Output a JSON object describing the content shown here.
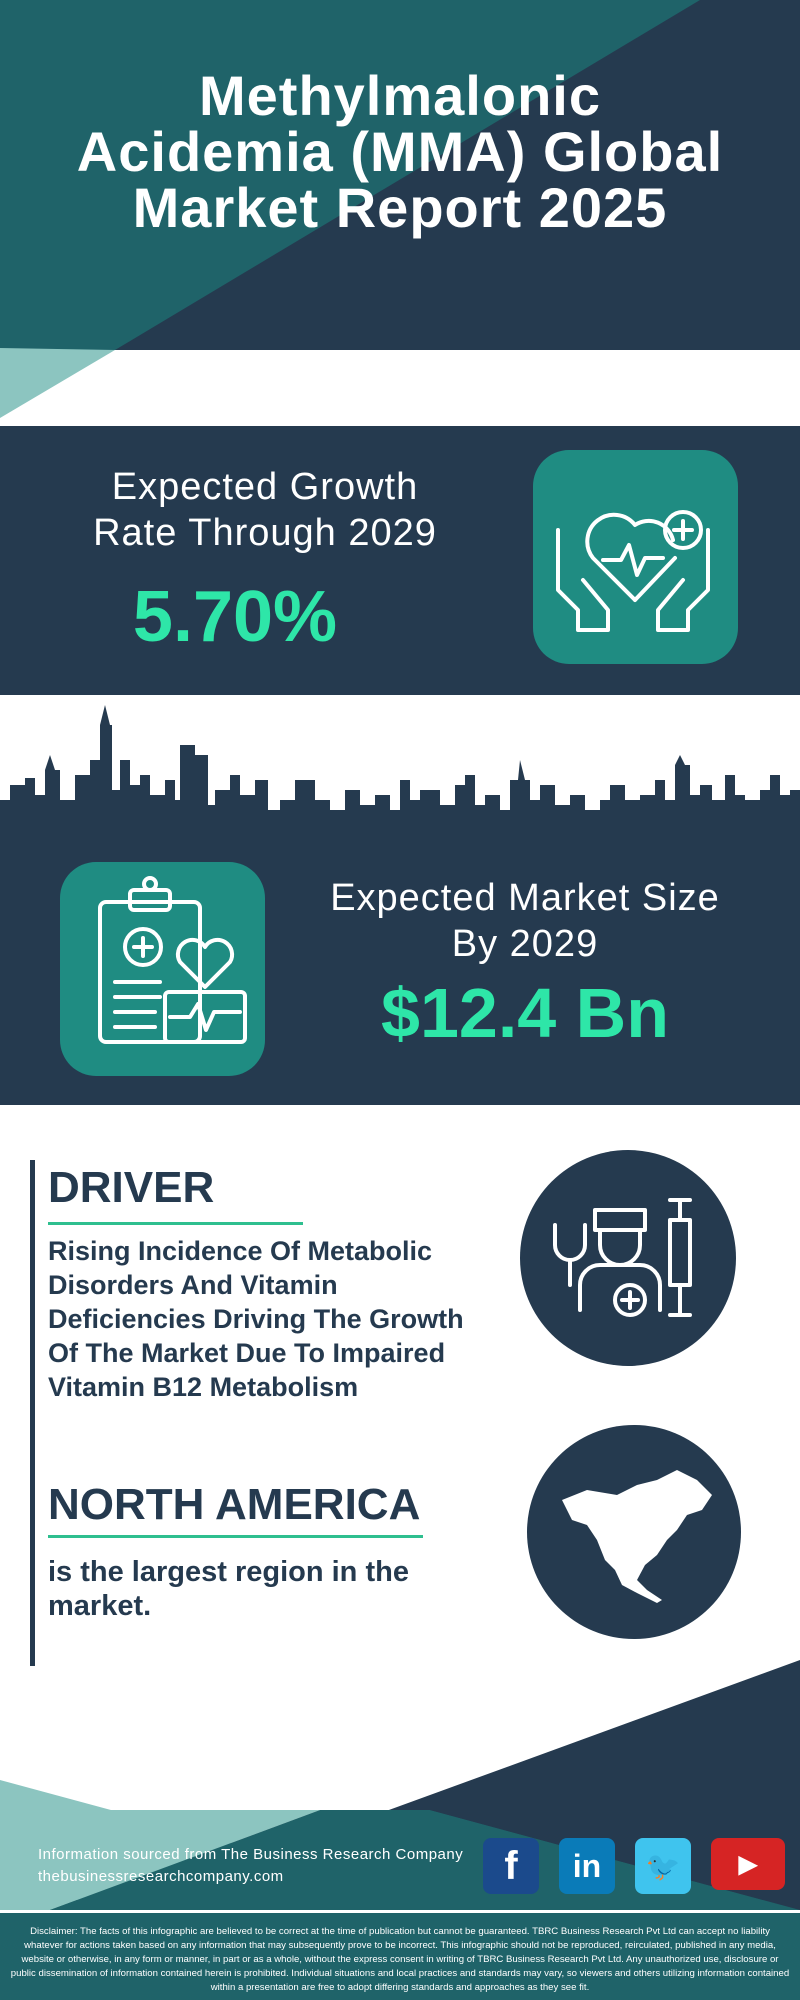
{
  "header": {
    "title_lines": [
      "Methylmalonic",
      "Acidemia (MMA) Global",
      "Market Report 2025"
    ]
  },
  "growth": {
    "label_lines": [
      "Expected Growth",
      "Rate Through 2029"
    ],
    "value": "5.70%",
    "icon": "heart-in-hands-icon"
  },
  "market": {
    "label_lines": [
      "Expected Market Size",
      "By 2029"
    ],
    "value": "$12.4 Bn",
    "icon": "medical-clipboard-heart-icon"
  },
  "driver": {
    "heading": "DRIVER",
    "text": "Rising Incidence Of Metabolic Disorders And Vitamin Deficiencies Driving The Growth Of The Market Due To Impaired Vitamin B12 Metabolism",
    "icon": "doctor-syringe-icon"
  },
  "region": {
    "heading": "NORTH AMERICA",
    "text": "is the largest region in the market.",
    "icon": "north-america-map-icon"
  },
  "footer": {
    "source": "Information sourced from The Business Research Company",
    "website": "thebusinessresearchcompany.com",
    "social": [
      {
        "name": "facebook",
        "glyph": "f",
        "color": "#1b4a8c"
      },
      {
        "name": "linkedin",
        "glyph": "in",
        "color": "#0a7bb8"
      },
      {
        "name": "twitter",
        "glyph": "🐦",
        "color": "#3fc4ee"
      },
      {
        "name": "youtube",
        "glyph": "▶",
        "color": "#d62424"
      }
    ]
  },
  "disclaimer": "Disclaimer: The facts of this infographic are believed to be correct at the time of publication but cannot be guaranteed. TBRC Business Research Pvt Ltd can accept no liability whatever for actions taken based on any information that may subsequently prove to be incorrect. This infographic should not be reproduced, reirculated, published in any media, website or otherwise, in any form or manner, in part or as a whole, without the express consent in writing of TBRC Business Research Pvt Ltd. Any unauthorized use, disclosure or public dissemination of information contained herein is prohibited. Individual situations and local practices and standards may vary, so viewers and others utilizing information contained within a presentation are free to adopt differing standards and approaches as they see fit.",
  "colors": {
    "navy": "#253a4f",
    "teal": "#1f6369",
    "light_teal": "#8cc5c0",
    "accent": "#2ee6a8",
    "icon_box": "#1f8c82"
  }
}
